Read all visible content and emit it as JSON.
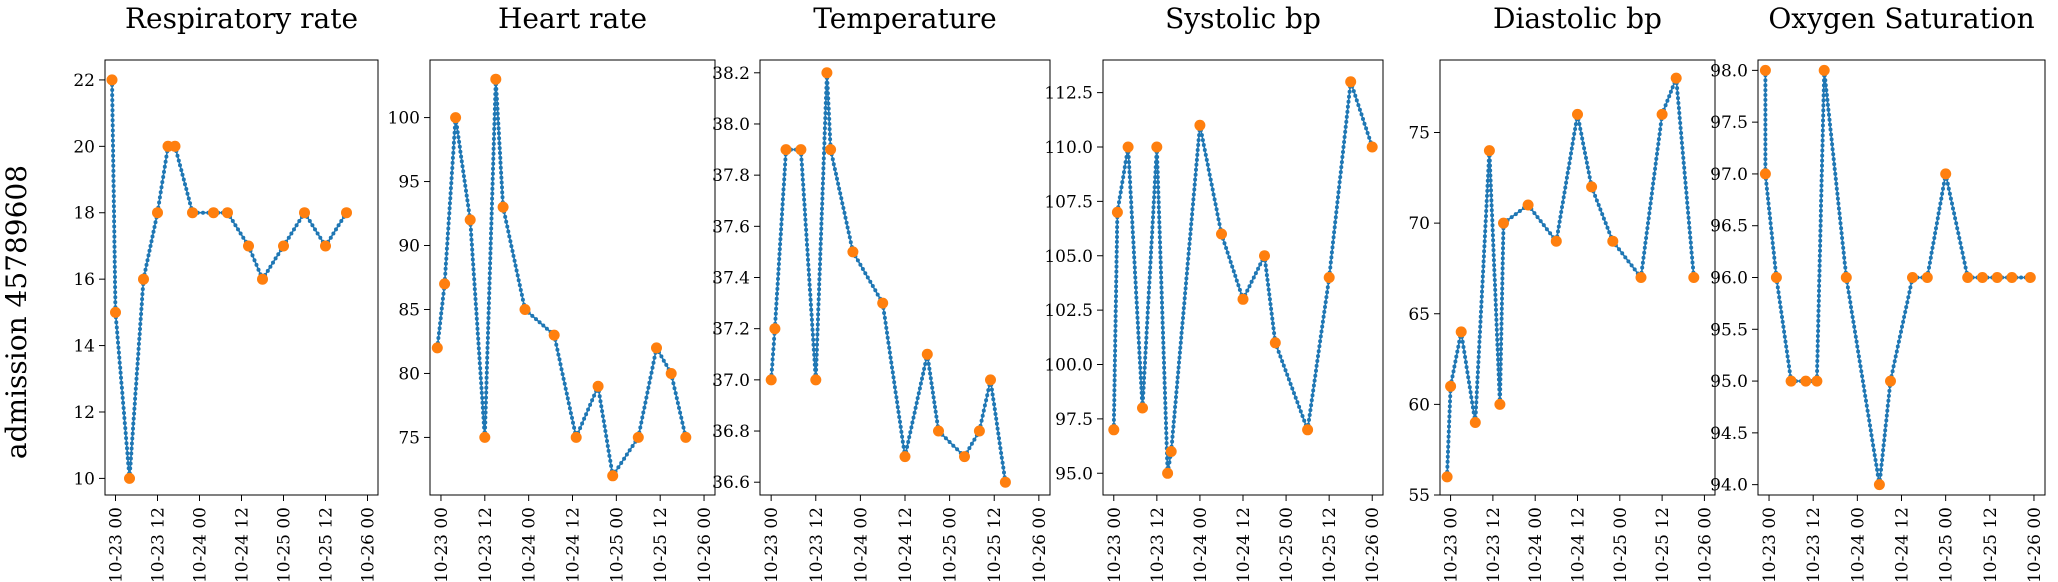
{
  "row_label": "admission 45789608",
  "colors": {
    "line": "#1f77b4",
    "marker": "#ff7f0e"
  },
  "x_tick_labels": [
    "10-23 00",
    "10-23 12",
    "10-24 00",
    "10-24 12",
    "10-25 00",
    "10-25 12",
    "10-26 00"
  ],
  "chart_data": [
    {
      "type": "line",
      "title": "Respiratory rate",
      "x_unit": "hours since 10-23 00",
      "xlim": [
        -3,
        75
      ],
      "ylim": [
        9.5,
        22.6
      ],
      "yticks": [
        10,
        12,
        14,
        16,
        18,
        20,
        22
      ],
      "ytick_labels": [
        "10",
        "12",
        "14",
        "16",
        "18",
        "20",
        "22"
      ],
      "x": [
        -1,
        0,
        4,
        8,
        12,
        15,
        17,
        22,
        28,
        32,
        38,
        42,
        48,
        54,
        60,
        66
      ],
      "y": [
        22,
        15,
        10,
        16,
        18,
        20,
        20,
        18,
        18,
        18,
        17,
        16,
        17,
        18,
        17,
        18
      ]
    },
    {
      "type": "line",
      "title": "Heart rate",
      "x_unit": "hours since 10-23 00",
      "xlim": [
        -3,
        75
      ],
      "ylim": [
        70.5,
        104.5
      ],
      "yticks": [
        75,
        80,
        85,
        90,
        95,
        100
      ],
      "ytick_labels": [
        "75",
        "80",
        "85",
        "90",
        "95",
        "100"
      ],
      "x": [
        -1,
        1,
        4,
        8,
        12,
        15,
        17,
        23,
        31,
        37,
        43,
        47,
        54,
        59,
        63,
        67
      ],
      "y": [
        82,
        87,
        100,
        92,
        75,
        103,
        93,
        85,
        83,
        75,
        79,
        72,
        75,
        82,
        80,
        75
      ]
    },
    {
      "type": "line",
      "title": "Temperature",
      "x_unit": "hours since 10-23 00",
      "xlim": [
        -3,
        75
      ],
      "ylim": [
        36.55,
        38.25
      ],
      "yticks": [
        36.6,
        36.8,
        37.0,
        37.2,
        37.4,
        37.6,
        37.8,
        38.0,
        38.2
      ],
      "ytick_labels": [
        "36.6",
        "36.8",
        "37.0",
        "37.2",
        "37.4",
        "37.6",
        "37.8",
        "38.0",
        "38.2"
      ],
      "x": [
        0,
        1,
        4,
        8,
        12,
        15,
        16,
        22,
        30,
        36,
        42,
        45,
        52,
        56,
        59,
        63
      ],
      "y": [
        37.0,
        37.2,
        37.9,
        37.9,
        37.0,
        38.2,
        37.9,
        37.5,
        37.3,
        36.7,
        37.1,
        36.8,
        36.7,
        36.8,
        37.0,
        36.6
      ]
    },
    {
      "type": "line",
      "title": "Systolic bp",
      "x_unit": "hours since 10-23 00",
      "xlim": [
        -3,
        75
      ],
      "ylim": [
        94.0,
        114.0
      ],
      "yticks": [
        95.0,
        97.5,
        100.0,
        102.5,
        105.0,
        107.5,
        110.0,
        112.5
      ],
      "ytick_labels": [
        "95.0",
        "97.5",
        "100.0",
        "102.5",
        "105.0",
        "107.5",
        "110.0",
        "112.5"
      ],
      "x": [
        0,
        1,
        4,
        8,
        12,
        15,
        16,
        24,
        30,
        36,
        42,
        45,
        54,
        60,
        66,
        72
      ],
      "y": [
        97,
        107,
        110,
        98,
        110,
        95,
        96,
        111,
        106,
        103,
        105,
        101,
        97,
        104,
        113,
        110
      ]
    },
    {
      "type": "line",
      "title": "Diastolic bp",
      "x_unit": "hours since 10-23 00",
      "xlim": [
        -3,
        75
      ],
      "ylim": [
        55.0,
        79.0
      ],
      "yticks": [
        55,
        60,
        65,
        70,
        75
      ],
      "ytick_labels": [
        "55",
        "60",
        "65",
        "70",
        "75"
      ],
      "x": [
        -1,
        0,
        3,
        7,
        11,
        14,
        15,
        22,
        30,
        36,
        40,
        46,
        54,
        60,
        64,
        69
      ],
      "y": [
        56,
        61,
        64,
        59,
        74,
        60,
        70,
        71,
        69,
        76,
        72,
        69,
        67,
        76,
        78,
        67
      ]
    },
    {
      "type": "line",
      "title": "Oxygen Saturation",
      "x_unit": "hours since 10-23 00",
      "xlim": [
        -3,
        75
      ],
      "ylim": [
        93.9,
        98.1
      ],
      "yticks": [
        94.0,
        94.5,
        95.0,
        95.5,
        96.0,
        96.5,
        97.0,
        97.5,
        98.0
      ],
      "ytick_labels": [
        "94.0",
        "94.5",
        "95.0",
        "95.5",
        "96.0",
        "96.5",
        "97.0",
        "97.5",
        "98.0"
      ],
      "x": [
        -1,
        -1,
        2,
        6,
        10,
        13,
        15,
        21,
        30,
        33,
        39,
        43,
        48,
        54,
        58,
        62,
        66,
        71
      ],
      "y": [
        98,
        97,
        96,
        95,
        95,
        95,
        98,
        96,
        94,
        95,
        96,
        96,
        97,
        96,
        96,
        96,
        96,
        96
      ]
    }
  ]
}
